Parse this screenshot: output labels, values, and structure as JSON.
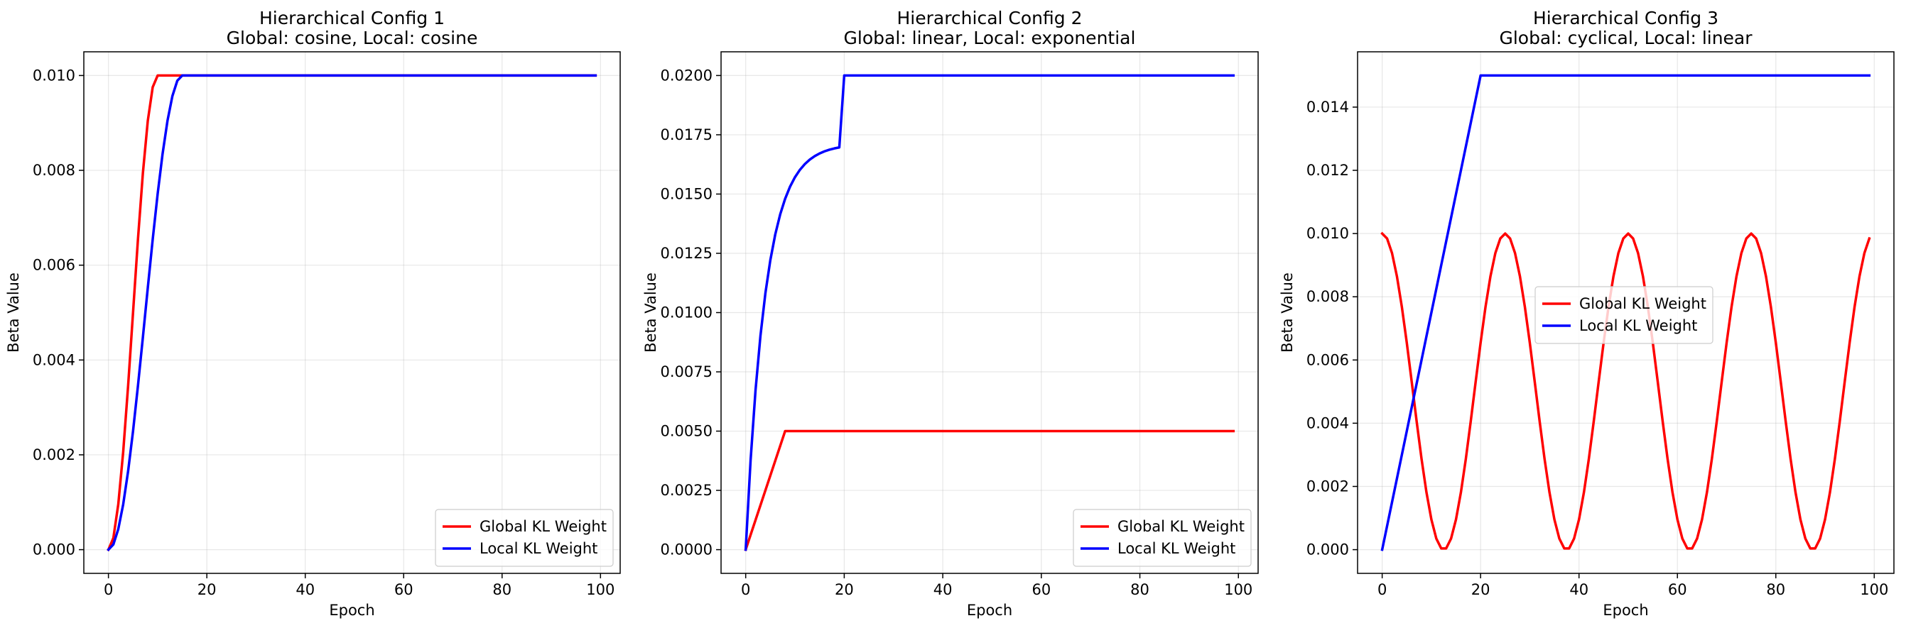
{
  "chart_data": [
    {
      "type": "line",
      "title": "Hierarchical Config 1",
      "subtitle": "Global: cosine, Local: cosine",
      "xlabel": "Epoch",
      "ylabel": "Beta Value",
      "xlim": [
        -5,
        104
      ],
      "ylim": [
        -0.0005,
        0.0105
      ],
      "xticks": [
        0,
        20,
        40,
        60,
        80,
        100
      ],
      "yticks": [
        0.0,
        0.002,
        0.004,
        0.006,
        0.008,
        0.01
      ],
      "ytick_labels": [
        "0.000",
        "0.002",
        "0.004",
        "0.006",
        "0.008",
        "0.010"
      ],
      "grid": true,
      "legend_loc": "lower-right",
      "series": [
        {
          "name": "Global KL Weight",
          "color": "#ff0000",
          "kind": "cosine",
          "target": 0.01,
          "warmup": 10
        },
        {
          "name": "Local KL Weight",
          "color": "#0000ff",
          "kind": "cosine",
          "target": 0.01,
          "warmup": 15
        }
      ]
    },
    {
      "type": "line",
      "title": "Hierarchical Config 2",
      "subtitle": "Global: linear, Local: exponential",
      "xlabel": "Epoch",
      "ylabel": "Beta Value",
      "xlim": [
        -5,
        104
      ],
      "ylim": [
        -0.001,
        0.021
      ],
      "xticks": [
        0,
        20,
        40,
        60,
        80,
        100
      ],
      "yticks": [
        0.0,
        0.0025,
        0.005,
        0.0075,
        0.01,
        0.0125,
        0.015,
        0.0175,
        0.02
      ],
      "ytick_labels": [
        "0.0000",
        "0.0025",
        "0.0050",
        "0.0075",
        "0.0100",
        "0.0125",
        "0.0150",
        "0.0175",
        "0.0200"
      ],
      "grid": true,
      "legend_loc": "lower-right",
      "series": [
        {
          "name": "Global KL Weight",
          "color": "#ff0000",
          "kind": "linear",
          "target": 0.005,
          "warmup": 8
        },
        {
          "name": "Local KL Weight",
          "color": "#0000ff",
          "kind": "exponential",
          "target": 0.02,
          "warmup": 20
        }
      ]
    },
    {
      "type": "line",
      "title": "Hierarchical Config 3",
      "subtitle": "Global: cyclical, Local: linear",
      "xlabel": "Epoch",
      "ylabel": "Beta Value",
      "xlim": [
        -5,
        104
      ],
      "ylim": [
        -0.00075,
        0.01575
      ],
      "xticks": [
        0,
        20,
        40,
        60,
        80,
        100
      ],
      "yticks": [
        0.0,
        0.002,
        0.004,
        0.006,
        0.008,
        0.01,
        0.012,
        0.014
      ],
      "ytick_labels": [
        "0.000",
        "0.002",
        "0.004",
        "0.006",
        "0.008",
        "0.010",
        "0.012",
        "0.014"
      ],
      "grid": true,
      "legend_loc": "center",
      "series": [
        {
          "name": "Global KL Weight",
          "color": "#ff0000",
          "kind": "cyclical",
          "target": 0.01,
          "period": 25
        },
        {
          "name": "Local KL Weight",
          "color": "#0000ff",
          "kind": "linear",
          "target": 0.015,
          "warmup": 20
        }
      ]
    }
  ]
}
